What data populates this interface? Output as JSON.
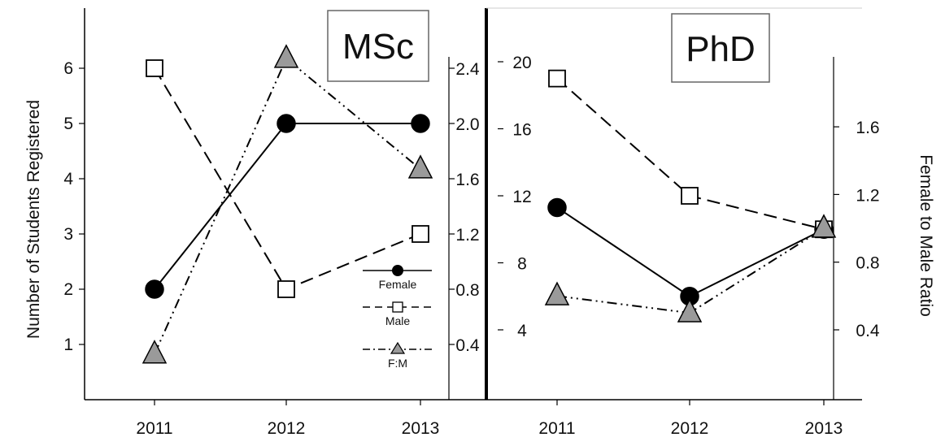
{
  "chart_data": [
    {
      "type": "line",
      "panel_title": "MSc",
      "categories": [
        "2011",
        "2012",
        "2013"
      ],
      "ylabel_left": "Number  of Students Registered",
      "left_ticks": [
        "1",
        "2",
        "3",
        "4",
        "5",
        "6"
      ],
      "right_ticks": [
        "0.4",
        "0.8",
        "1.2",
        "1.6",
        "2.0",
        "2.4"
      ],
      "ylim_left": [
        0,
        7
      ],
      "ylim_right": [
        0,
        2.8
      ],
      "series": [
        {
          "name": "Female",
          "axis": "left",
          "values": [
            2,
            5,
            5
          ],
          "marker": "circle",
          "line": "solid"
        },
        {
          "name": "Male",
          "axis": "left",
          "values": [
            6,
            2,
            3
          ],
          "marker": "square",
          "line": "dashed"
        },
        {
          "name": "F:M",
          "axis": "right",
          "values": [
            0.33,
            2.47,
            1.67
          ],
          "marker": "triangle",
          "line": "dash-dot-dot"
        }
      ],
      "legend": {
        "placement": "lower-right",
        "labels": [
          "Female",
          "Male",
          "F:M"
        ]
      }
    },
    {
      "type": "line",
      "panel_title": "PhD",
      "categories": [
        "2011",
        "2012",
        "2013"
      ],
      "ylabel_right": "Female to Male Ratio",
      "left_ticks": [
        "4",
        "8",
        "12",
        "16",
        "20"
      ],
      "right_ticks": [
        "0.4",
        "0.8",
        "1.2",
        "1.6"
      ],
      "ylim_left": [
        0,
        24
      ],
      "ylim_right": [
        0,
        2.0
      ],
      "series": [
        {
          "name": "Female",
          "axis": "left",
          "values": [
            11.3,
            6,
            10
          ],
          "marker": "circle",
          "line": "solid"
        },
        {
          "name": "Male",
          "axis": "left",
          "values": [
            19,
            12,
            10
          ],
          "marker": "square",
          "line": "dashed"
        },
        {
          "name": "F:M",
          "axis": "right",
          "values": [
            0.6,
            0.5,
            1.0
          ],
          "marker": "triangle",
          "line": "dash-dot-dot"
        }
      ]
    }
  ],
  "colors": {
    "line": "#000000",
    "triangle_fill": "#9a9a9a",
    "square_fill": "#ffffff",
    "circle_fill": "#000000"
  }
}
